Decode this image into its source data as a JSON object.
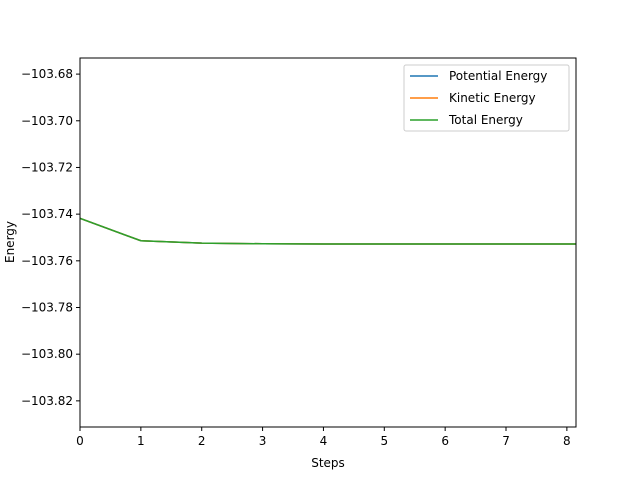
{
  "chart_data": {
    "type": "line",
    "title": "",
    "xlabel": "Steps",
    "ylabel": "Energy",
    "xlim": [
      0,
      8.15
    ],
    "ylim": [
      -103.8312,
      -103.6731
    ],
    "xticks": [
      0,
      1,
      2,
      3,
      4,
      5,
      6,
      7,
      8
    ],
    "yticks": [
      -103.68,
      -103.7,
      -103.72,
      -103.74,
      -103.76,
      -103.78,
      -103.8,
      -103.82
    ],
    "ytick_labels": [
      "−103.68",
      "−103.70",
      "−103.72",
      "−103.74",
      "−103.76",
      "−103.78",
      "−103.80",
      "−103.82"
    ],
    "grid": false,
    "legend_position": "top-right",
    "x": [
      0,
      1,
      2,
      3,
      4,
      5,
      6,
      7,
      8,
      9
    ],
    "series": [
      {
        "name": "Potential Energy",
        "color": "#1f77b4",
        "values": [
          -103.7418,
          -103.7514,
          -103.7524,
          -103.7527,
          -103.7528,
          -103.7528,
          -103.7528,
          -103.7528,
          -103.7528,
          -103.7528
        ]
      },
      {
        "name": "Kinetic Energy",
        "color": "#ff7f0e",
        "values": [
          -103.7418,
          -103.7514,
          -103.7524,
          -103.7527,
          -103.7528,
          -103.7528,
          -103.7528,
          -103.7528,
          -103.7528,
          -103.7528
        ]
      },
      {
        "name": "Total Energy",
        "color": "#2ca02c",
        "values": [
          -103.7418,
          -103.7514,
          -103.7524,
          -103.7527,
          -103.7528,
          -103.7528,
          -103.7528,
          -103.7528,
          -103.7528,
          -103.7528
        ]
      }
    ]
  }
}
